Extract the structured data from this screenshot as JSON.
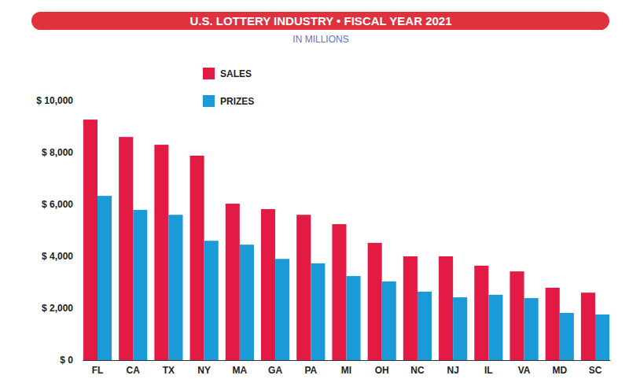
{
  "chart_data": {
    "type": "bar",
    "title": "U.S. LOTTERY INDUSTRY • FISCAL YEAR 2021",
    "subtitle": "IN MILLIONS",
    "categories": [
      "FL",
      "CA",
      "TX",
      "NY",
      "MA",
      "GA",
      "PA",
      "MI",
      "OH",
      "NC",
      "NJ",
      "IL",
      "VA",
      "MD",
      "SC"
    ],
    "series": [
      {
        "name": "SALES",
        "color": "#e31b44",
        "values": [
          9270,
          8600,
          8300,
          7880,
          6030,
          5820,
          5600,
          5240,
          4520,
          4000,
          4000,
          3640,
          3420,
          2790,
          2600
        ]
      },
      {
        "name": "PRIZES",
        "color": "#1a9ad6",
        "values": [
          6330,
          5790,
          5600,
          4600,
          4450,
          3900,
          3730,
          3240,
          3030,
          2640,
          2420,
          2520,
          2390,
          1820,
          1760
        ]
      }
    ],
    "ylim": [
      0,
      10000
    ],
    "yticks": [
      {
        "value": 0,
        "label": "$ 0"
      },
      {
        "value": 2000,
        "label": "$ 2,000"
      },
      {
        "value": 4000,
        "label": "$ 4,000"
      },
      {
        "value": 6000,
        "label": "$ 6,000"
      },
      {
        "value": 8000,
        "label": "$ 8,000"
      },
      {
        "value": 10000,
        "label": "$ 10,000"
      }
    ],
    "grid": false,
    "legend": "upper left"
  }
}
